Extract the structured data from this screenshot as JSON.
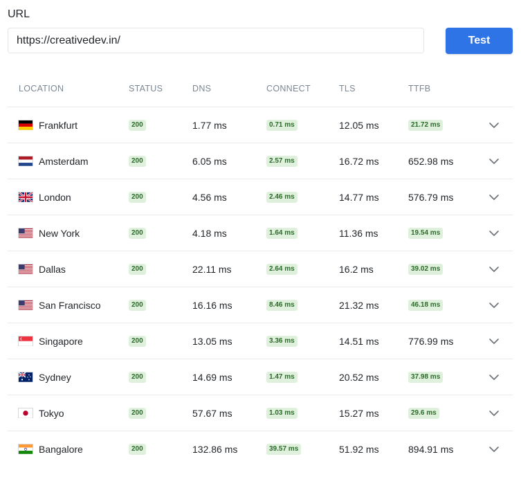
{
  "form": {
    "url_label": "URL",
    "url_value": "https://creativedev.in/",
    "test_label": "Test"
  },
  "colors": {
    "accent": "#2f74e6",
    "badge_bg": "#dff1dc",
    "badge_text": "#2d6a2b"
  },
  "table": {
    "headers": {
      "location": "LOCATION",
      "status": "STATUS",
      "dns": "DNS",
      "connect": "CONNECT",
      "tls": "TLS",
      "ttfb": "TTFB"
    },
    "rows": [
      {
        "location": "Frankfurt",
        "flag": "germany-flag-icon",
        "status": "200",
        "dns": "1.77 ms",
        "connect": "0.71 ms",
        "connect_badge": true,
        "tls": "12.05 ms",
        "ttfb": "21.72 ms",
        "ttfb_badge": true
      },
      {
        "location": "Amsterdam",
        "flag": "netherlands-flag-icon",
        "status": "200",
        "dns": "6.05 ms",
        "connect": "2.57 ms",
        "connect_badge": true,
        "tls": "16.72 ms",
        "ttfb": "652.98 ms",
        "ttfb_badge": false
      },
      {
        "location": "London",
        "flag": "uk-flag-icon",
        "status": "200",
        "dns": "4.56 ms",
        "connect": "2.46 ms",
        "connect_badge": true,
        "tls": "14.77 ms",
        "ttfb": "576.79 ms",
        "ttfb_badge": false
      },
      {
        "location": "New York",
        "flag": "usa-flag-icon",
        "status": "200",
        "dns": "4.18 ms",
        "connect": "1.64 ms",
        "connect_badge": true,
        "tls": "11.36 ms",
        "ttfb": "19.54 ms",
        "ttfb_badge": true
      },
      {
        "location": "Dallas",
        "flag": "usa-flag-icon",
        "status": "200",
        "dns": "22.11 ms",
        "connect": "2.64 ms",
        "connect_badge": true,
        "tls": "16.2 ms",
        "ttfb": "39.02 ms",
        "ttfb_badge": true
      },
      {
        "location": "San Francisco",
        "flag": "usa-flag-icon",
        "status": "200",
        "dns": "16.16 ms",
        "connect": "8.46 ms",
        "connect_badge": true,
        "tls": "21.32 ms",
        "ttfb": "46.18 ms",
        "ttfb_badge": true
      },
      {
        "location": "Singapore",
        "flag": "singapore-flag-icon",
        "status": "200",
        "dns": "13.05 ms",
        "connect": "3.36 ms",
        "connect_badge": true,
        "tls": "14.51 ms",
        "ttfb": "776.99 ms",
        "ttfb_badge": false
      },
      {
        "location": "Sydney",
        "flag": "australia-flag-icon",
        "status": "200",
        "dns": "14.69 ms",
        "connect": "1.47 ms",
        "connect_badge": true,
        "tls": "20.52 ms",
        "ttfb": "37.98 ms",
        "ttfb_badge": true
      },
      {
        "location": "Tokyo",
        "flag": "japan-flag-icon",
        "status": "200",
        "dns": "57.67 ms",
        "connect": "1.03 ms",
        "connect_badge": true,
        "tls": "15.27 ms",
        "ttfb": "29.6 ms",
        "ttfb_badge": true
      },
      {
        "location": "Bangalore",
        "flag": "india-flag-icon",
        "status": "200",
        "dns": "132.86 ms",
        "connect": "39.57 ms",
        "connect_badge": true,
        "tls": "51.92 ms",
        "ttfb": "894.91 ms",
        "ttfb_badge": false
      }
    ]
  }
}
